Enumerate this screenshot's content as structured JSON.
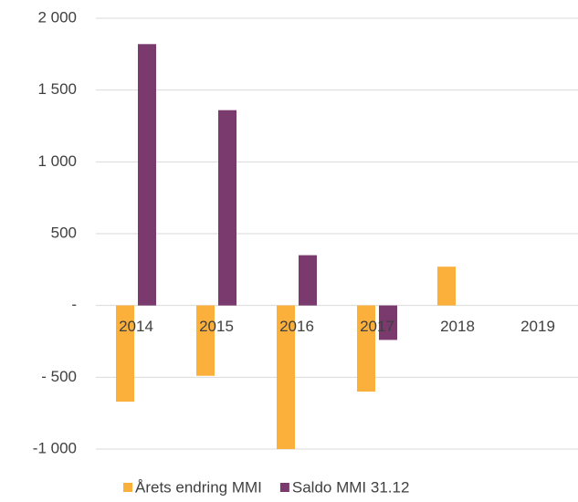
{
  "chart_data": {
    "type": "bar",
    "categories": [
      "2014",
      "2015",
      "2016",
      "2017",
      "2018",
      "2019"
    ],
    "series": [
      {
        "name": "Årets endring MMI",
        "color": "#fbb03b",
        "values": [
          -670,
          -490,
          -1000,
          -600,
          270,
          null
        ]
      },
      {
        "name": "Saldo MMI 31.12",
        "color": "#7b3a6e",
        "values": [
          1820,
          1360,
          350,
          -240,
          null,
          null
        ]
      }
    ],
    "ylim": [
      -1000,
      2000
    ],
    "yticks": [
      {
        "value": -1000,
        "label": "-1 000"
      },
      {
        "value": -500,
        "label": "- 500"
      },
      {
        "value": 0,
        "label": "-"
      },
      500,
      {
        "value": 1000,
        "label": "1 000"
      },
      {
        "value": 1500,
        "label": "1 500"
      },
      {
        "value": 2000,
        "label": "2 000"
      }
    ],
    "grid": true,
    "legend": "bottom"
  }
}
